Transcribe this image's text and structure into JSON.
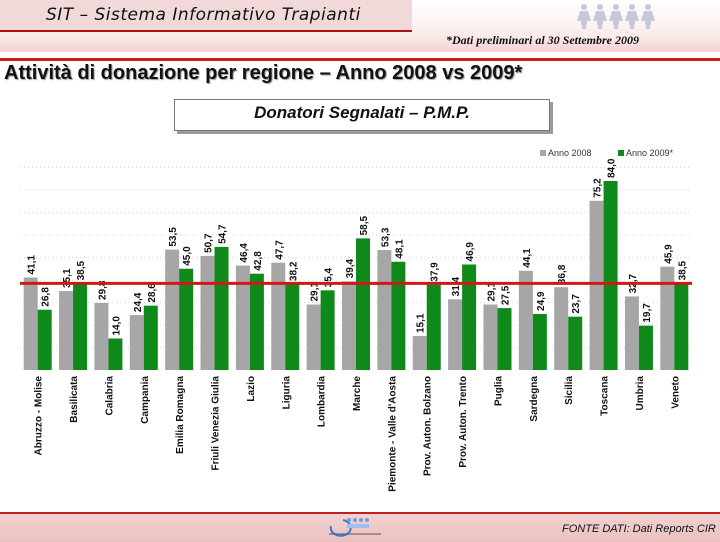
{
  "header": {
    "app_title": "SIT – Sistema Informativo Trapianti",
    "prelim_note": "*Dati preliminari al 30 Settembre 2009"
  },
  "title": "Attività di donazione per regione – Anno 2008 vs 2009*",
  "subtitle": "Donatori Segnalati – P.M.P.",
  "footer": {
    "source": "FONTE DATI: Dati Reports CIR"
  },
  "colors": {
    "series_2008": "#a6a6a6",
    "series_2009": "#0f8a1a",
    "reference_line": "#d01818",
    "accent": "#b01010"
  },
  "chart_data": {
    "type": "bar",
    "categories": [
      "Abruzzo - Molise",
      "Basilicata",
      "Calabria",
      "Campania",
      "Emilia Romagna",
      "Friuli Venezia Giulia",
      "Lazio",
      "Liguria",
      "Lombardia",
      "Marche",
      "Piemonte - Valle d'Aosta",
      "Prov. Auton. Bolzano",
      "Prov. Auton. Trento",
      "Puglia",
      "Sardegna",
      "Sicilia",
      "Toscana",
      "Umbria",
      "Veneto"
    ],
    "series": [
      {
        "name": "Anno 2008",
        "values": [
          41.1,
          35.1,
          29.8,
          24.4,
          53.5,
          50.7,
          46.4,
          47.7,
          29.1,
          39.4,
          53.3,
          15.1,
          31.4,
          29.1,
          44.1,
          36.8,
          75.2,
          32.7,
          45.9
        ]
      },
      {
        "name": "Anno 2009*",
        "values": [
          26.8,
          38.5,
          14.0,
          28.6,
          45.0,
          54.7,
          42.8,
          38.2,
          35.4,
          58.5,
          48.1,
          37.9,
          46.9,
          27.5,
          24.9,
          23.7,
          84.0,
          19.7,
          38.5
        ]
      }
    ],
    "data_labels": [
      [
        "41,1",
        "35,1",
        "29,8",
        "24,4",
        "53,5",
        "50,7",
        "46,4",
        "47,7",
        "29,1",
        "39,4",
        "53,3",
        "15,1",
        "31,4",
        "29,1",
        "44,1",
        "36,8",
        "75,2",
        "32,7",
        "45,9"
      ],
      [
        "26,8",
        "38,5",
        "14,0",
        "28,6",
        "45,0",
        "54,7",
        "42,8",
        "38,2",
        "35,4",
        "58,5",
        "48,1",
        "37,9",
        "46,9",
        "27,5",
        "24,9",
        "23,7",
        "84,0",
        "19,7",
        "38,5"
      ]
    ],
    "reference_value": 38.5,
    "ylim": [
      0,
      100
    ],
    "grid": true,
    "legend_position": "top-right"
  }
}
